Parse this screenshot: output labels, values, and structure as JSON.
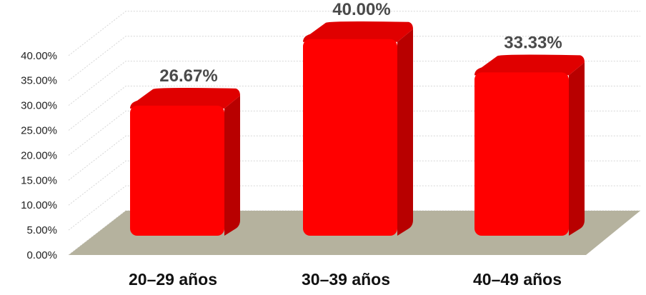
{
  "chart_data": {
    "type": "bar",
    "categories": [
      "20–29 años",
      "30–39 años",
      "40–49 años"
    ],
    "values": [
      26.67,
      40.0,
      33.33
    ],
    "data_labels": [
      "26.67%",
      "40.00%",
      "33.33%"
    ],
    "y_ticks": [
      "0.00%",
      "5.00%",
      "10.00%",
      "15.00%",
      "20.00%",
      "25.00%",
      "30.00%",
      "35.00%",
      "40.00%"
    ],
    "ylim": [
      0,
      40
    ],
    "grid": true,
    "style": "3d",
    "colors": {
      "bar_front": "#ff0000",
      "bar_side": "#b80000",
      "bar_top": "#e00000",
      "floor": "#b5b29e",
      "grid": "#d6d6d6"
    }
  }
}
